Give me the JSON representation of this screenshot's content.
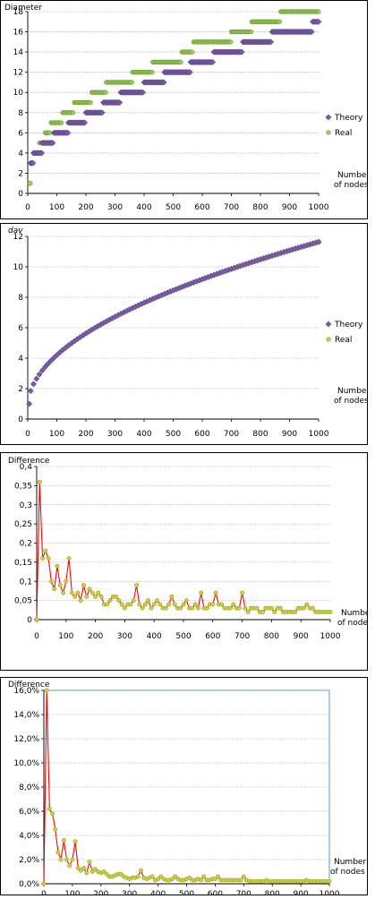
{
  "chart_data": [
    {
      "type": "scatter",
      "ylabel": "Diameter",
      "xlabel": "Number of nodes",
      "xlabel_lines": [
        "Number",
        "of nodes"
      ],
      "xlim": [
        0,
        1000
      ],
      "ylim": [
        0,
        18
      ],
      "xticks": [
        0,
        100,
        200,
        300,
        400,
        500,
        600,
        700,
        800,
        900,
        1000
      ],
      "yticks": [
        0,
        2,
        4,
        6,
        8,
        10,
        12,
        14,
        16,
        18
      ],
      "grid": true,
      "legend_position": "right",
      "series": [
        {
          "name": "Theory",
          "marker": "diamond",
          "color": "#7b5aa6",
          "step": true,
          "steps": [
            [
              10,
              3
            ],
            [
              20,
              4
            ],
            [
              50,
              5
            ],
            [
              90,
              6
            ],
            [
              140,
              7
            ],
            [
              200,
              8
            ],
            [
              260,
              9
            ],
            [
              320,
              10
            ],
            [
              400,
              11
            ],
            [
              470,
              12
            ],
            [
              560,
              13
            ],
            [
              640,
              14
            ],
            [
              740,
              15
            ],
            [
              840,
              16
            ],
            [
              980,
              17
            ],
            [
              1000,
              17
            ]
          ]
        },
        {
          "name": "Real",
          "marker": "circle",
          "color": "#92d050",
          "step": true,
          "steps": [
            [
              5,
              1
            ],
            [
              10,
              3
            ],
            [
              20,
              4
            ],
            [
              40,
              5
            ],
            [
              60,
              6
            ],
            [
              80,
              7
            ],
            [
              120,
              8
            ],
            [
              160,
              9
            ],
            [
              220,
              10
            ],
            [
              270,
              11
            ],
            [
              360,
              12
            ],
            [
              430,
              13
            ],
            [
              530,
              14
            ],
            [
              570,
              15
            ],
            [
              700,
              16
            ],
            [
              770,
              17
            ],
            [
              870,
              18
            ],
            [
              1000,
              18
            ]
          ]
        }
      ]
    },
    {
      "type": "scatter",
      "ylabel": "dav",
      "xlabel": "Number of nodes",
      "xlabel_lines": [
        "Number",
        "of nodes"
      ],
      "xlim": [
        0,
        1000
      ],
      "ylim": [
        0,
        12
      ],
      "xticks": [
        0,
        100,
        200,
        300,
        400,
        500,
        600,
        700,
        800,
        900,
        1000
      ],
      "yticks": [
        0,
        2,
        4,
        6,
        8,
        10,
        12
      ],
      "grid": true,
      "legend_position": "right",
      "series": [
        {
          "name": "Theory",
          "marker": "diamond",
          "color": "#7b5aa6",
          "curve": "sqrt",
          "x": [
            5,
            10,
            1000
          ],
          "y": [
            1.0,
            1.85,
            11.65
          ]
        },
        {
          "name": "Real",
          "marker": "circle",
          "color": "#c8d23c",
          "curve": "sqrt",
          "x": [
            5,
            10,
            1000
          ],
          "y": [
            1.0,
            1.85,
            11.6
          ]
        }
      ]
    },
    {
      "type": "line",
      "ylabel": "Difference",
      "xlabel": "Number of nodes",
      "xlabel_lines": [
        "Number",
        "of nodes"
      ],
      "xlim": [
        0,
        1000
      ],
      "ylim": [
        0,
        0.4
      ],
      "xticks": [
        0,
        100,
        200,
        300,
        400,
        500,
        600,
        700,
        800,
        900,
        1000
      ],
      "yticks": [
        0,
        0.05,
        0.1,
        0.15,
        0.2,
        0.25,
        0.3,
        0.35,
        0.4
      ],
      "ytick_labels": [
        "0",
        "0,05",
        "0,1",
        "0,15",
        "0,2",
        "0,25",
        "0,3",
        "0,35",
        "0,4"
      ],
      "grid": true,
      "x": [
        0,
        10,
        20,
        30,
        40,
        50,
        60,
        70,
        80,
        90,
        100,
        110,
        120,
        130,
        140,
        150,
        160,
        170,
        180,
        190,
        200,
        210,
        220,
        230,
        240,
        250,
        260,
        270,
        280,
        290,
        300,
        310,
        320,
        330,
        340,
        350,
        360,
        370,
        380,
        390,
        400,
        410,
        420,
        430,
        440,
        450,
        460,
        470,
        480,
        490,
        500,
        510,
        520,
        530,
        540,
        550,
        560,
        570,
        580,
        590,
        600,
        610,
        620,
        630,
        640,
        650,
        660,
        670,
        680,
        690,
        700,
        710,
        720,
        730,
        740,
        750,
        760,
        770,
        780,
        790,
        800,
        810,
        820,
        830,
        840,
        850,
        860,
        870,
        880,
        890,
        900,
        910,
        920,
        930,
        940,
        950,
        960,
        970,
        980,
        990,
        1000
      ],
      "y": [
        0,
        0.36,
        0.16,
        0.18,
        0.16,
        0.1,
        0.08,
        0.14,
        0.09,
        0.07,
        0.1,
        0.16,
        0.07,
        0.06,
        0.07,
        0.05,
        0.09,
        0.06,
        0.08,
        0.07,
        0.06,
        0.07,
        0.06,
        0.04,
        0.04,
        0.05,
        0.06,
        0.06,
        0.05,
        0.04,
        0.03,
        0.04,
        0.04,
        0.05,
        0.09,
        0.04,
        0.03,
        0.04,
        0.05,
        0.03,
        0.04,
        0.05,
        0.04,
        0.03,
        0.03,
        0.04,
        0.06,
        0.04,
        0.03,
        0.03,
        0.04,
        0.05,
        0.03,
        0.03,
        0.04,
        0.03,
        0.07,
        0.03,
        0.03,
        0.04,
        0.04,
        0.07,
        0.04,
        0.04,
        0.03,
        0.03,
        0.03,
        0.04,
        0.03,
        0.03,
        0.07,
        0.03,
        0.02,
        0.03,
        0.03,
        0.03,
        0.02,
        0.02,
        0.03,
        0.03,
        0.03,
        0.02,
        0.03,
        0.03,
        0.02,
        0.02,
        0.02,
        0.02,
        0.02,
        0.03,
        0.03,
        0.03,
        0.04,
        0.03,
        0.03,
        0.02,
        0.02,
        0.02,
        0.02,
        0.02,
        0.02
      ],
      "line_color": "#ff0000",
      "marker_color": "#c8d23c"
    },
    {
      "type": "line",
      "ylabel": "Difference",
      "xlabel": "Number of nodes",
      "xlabel_lines": [
        "Number",
        "of nodes"
      ],
      "xlim": [
        0,
        1000
      ],
      "ylim": [
        0,
        16
      ],
      "xticks": [
        0,
        100,
        200,
        300,
        400,
        500,
        600,
        700,
        800,
        900,
        1000
      ],
      "yticks": [
        0,
        2,
        4,
        6,
        8,
        10,
        12,
        14,
        16
      ],
      "ytick_labels": [
        "0,0%",
        "2,0%",
        "4,0%",
        "6,0%",
        "8,0%",
        "10,0%",
        "12,0%",
        "14,0%",
        "16,0%"
      ],
      "grid": true,
      "plot_border_color": "#4f9be0",
      "x": [
        0,
        10,
        20,
        30,
        40,
        50,
        60,
        70,
        80,
        90,
        100,
        110,
        120,
        130,
        140,
        150,
        160,
        170,
        180,
        190,
        200,
        210,
        220,
        230,
        240,
        250,
        260,
        270,
        280,
        290,
        300,
        310,
        320,
        330,
        340,
        350,
        360,
        370,
        380,
        390,
        400,
        410,
        420,
        430,
        440,
        450,
        460,
        470,
        480,
        490,
        500,
        510,
        520,
        530,
        540,
        550,
        560,
        570,
        580,
        590,
        600,
        610,
        620,
        630,
        640,
        650,
        660,
        670,
        680,
        690,
        700,
        710,
        720,
        730,
        740,
        750,
        760,
        770,
        780,
        790,
        800,
        810,
        820,
        830,
        840,
        850,
        860,
        870,
        880,
        890,
        900,
        910,
        920,
        930,
        940,
        950,
        960,
        970,
        980,
        990,
        1000
      ],
      "y": [
        0,
        16,
        6.2,
        5.8,
        4.5,
        2.6,
        2.0,
        3.6,
        2.0,
        1.5,
        2.0,
        3.5,
        1.3,
        1.1,
        1.3,
        0.9,
        1.8,
        1.0,
        1.2,
        1.0,
        0.9,
        1.0,
        0.8,
        0.6,
        0.6,
        0.7,
        0.8,
        0.8,
        0.6,
        0.5,
        0.4,
        0.5,
        0.5,
        0.6,
        1.1,
        0.5,
        0.4,
        0.5,
        0.6,
        0.3,
        0.4,
        0.6,
        0.4,
        0.3,
        0.3,
        0.4,
        0.6,
        0.4,
        0.3,
        0.3,
        0.4,
        0.5,
        0.3,
        0.3,
        0.4,
        0.3,
        0.6,
        0.3,
        0.3,
        0.4,
        0.4,
        0.6,
        0.3,
        0.3,
        0.3,
        0.3,
        0.3,
        0.3,
        0.3,
        0.3,
        0.6,
        0.3,
        0.2,
        0.2,
        0.2,
        0.2,
        0.2,
        0.2,
        0.3,
        0.2,
        0.2,
        0.2,
        0.2,
        0.2,
        0.2,
        0.2,
        0.2,
        0.2,
        0.2,
        0.2,
        0.2,
        0.2,
        0.3,
        0.2,
        0.2,
        0.2,
        0.2,
        0.2,
        0.2,
        0.2,
        0.2
      ],
      "line_color": "#ff0000",
      "marker_color": "#c8d23c"
    }
  ]
}
